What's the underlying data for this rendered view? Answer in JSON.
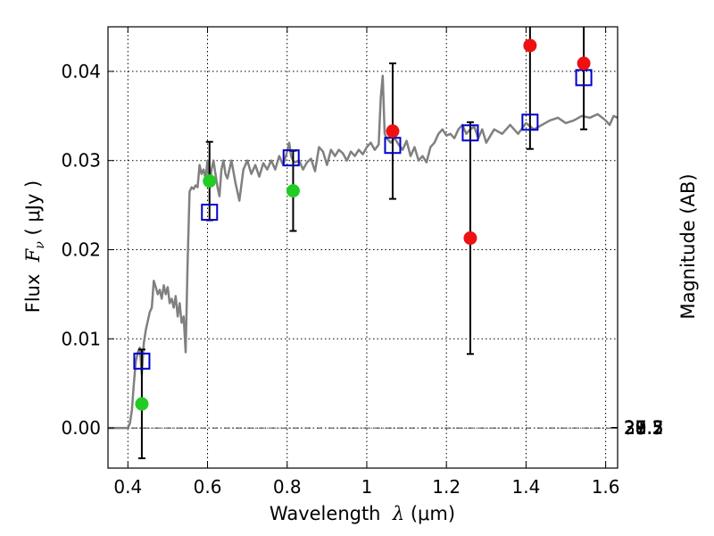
{
  "chart_data": {
    "type": "scatter",
    "xlabel": {
      "prefix": "Wavelength  ",
      "symbol": "λ",
      "units": " (μm)"
    },
    "ylabel": {
      "prefix": "Flux  ",
      "symbol": "F",
      "subscript": "ν",
      "units": " ( μJy )"
    },
    "y2label": "Magnitude (AB)",
    "xlim": [
      0.35,
      1.63
    ],
    "ylim": [
      -0.0045,
      0.045
    ],
    "grid": true,
    "x_ticks": [
      {
        "value": 0.4,
        "label": "0.4"
      },
      {
        "value": 0.6,
        "label": "0.6"
      },
      {
        "value": 0.8,
        "label": "0.8"
      },
      {
        "value": 1.0,
        "label": "1"
      },
      {
        "value": 1.2,
        "label": "1.2"
      },
      {
        "value": 1.4,
        "label": "1.4"
      },
      {
        "value": 1.6,
        "label": "1.6"
      }
    ],
    "y_ticks": [
      {
        "value": 0.0,
        "label": "0.00"
      },
      {
        "value": 0.01,
        "label": "0.01"
      },
      {
        "value": 0.02,
        "label": "0.02"
      },
      {
        "value": 0.03,
        "label": "0.03"
      },
      {
        "value": 0.04,
        "label": "0.04"
      }
    ],
    "y2_ticks": [
      {
        "value": 27.3,
        "label": "27.3"
      },
      {
        "value": 27.5,
        "label": "27.5"
      },
      {
        "value": 27.7,
        "label": "27.7"
      },
      {
        "value": 28.0,
        "label": "28"
      },
      {
        "value": 28.2,
        "label": "28.2"
      },
      {
        "value": 28.5,
        "label": "28.5"
      },
      {
        "value": 29.0,
        "label": "29"
      },
      {
        "value": 29.5,
        "label": "29.5"
      },
      {
        "value": 30.0,
        "label": "30"
      },
      {
        "value": 31.0,
        "label": "31"
      }
    ],
    "model_spectrum": {
      "color": "#808080",
      "x": [
        0.35,
        0.4,
        0.405,
        0.41,
        0.415,
        0.42,
        0.425,
        0.43,
        0.435,
        0.44,
        0.445,
        0.45,
        0.455,
        0.46,
        0.465,
        0.47,
        0.475,
        0.48,
        0.485,
        0.49,
        0.495,
        0.5,
        0.505,
        0.51,
        0.515,
        0.52,
        0.525,
        0.53,
        0.535,
        0.54,
        0.545,
        0.55,
        0.555,
        0.56,
        0.565,
        0.57,
        0.575,
        0.58,
        0.585,
        0.59,
        0.595,
        0.6,
        0.605,
        0.61,
        0.615,
        0.62,
        0.625,
        0.63,
        0.635,
        0.64,
        0.645,
        0.65,
        0.66,
        0.67,
        0.68,
        0.69,
        0.7,
        0.71,
        0.72,
        0.73,
        0.74,
        0.75,
        0.76,
        0.77,
        0.78,
        0.79,
        0.8,
        0.805,
        0.81,
        0.815,
        0.82,
        0.83,
        0.84,
        0.85,
        0.86,
        0.87,
        0.88,
        0.89,
        0.9,
        0.91,
        0.92,
        0.93,
        0.94,
        0.95,
        0.96,
        0.97,
        0.98,
        0.99,
        1.0,
        1.01,
        1.02,
        1.03,
        1.035,
        1.04,
        1.045,
        1.05,
        1.06,
        1.07,
        1.08,
        1.09,
        1.1,
        1.11,
        1.12,
        1.13,
        1.14,
        1.15,
        1.16,
        1.17,
        1.18,
        1.19,
        1.2,
        1.21,
        1.22,
        1.23,
        1.24,
        1.25,
        1.26,
        1.27,
        1.28,
        1.29,
        1.3,
        1.32,
        1.34,
        1.36,
        1.38,
        1.4,
        1.42,
        1.44,
        1.46,
        1.48,
        1.5,
        1.52,
        1.54,
        1.56,
        1.58,
        1.6,
        1.61,
        1.62,
        1.63
      ],
      "y": [
        0.0,
        0.0,
        0.0005,
        0.002,
        0.005,
        0.0075,
        0.0085,
        0.009,
        0.006,
        0.0095,
        0.011,
        0.012,
        0.013,
        0.0135,
        0.0165,
        0.0158,
        0.015,
        0.0155,
        0.0145,
        0.016,
        0.015,
        0.0158,
        0.014,
        0.0145,
        0.0135,
        0.0148,
        0.0125,
        0.014,
        0.0118,
        0.0125,
        0.0085,
        0.0185,
        0.0265,
        0.027,
        0.0268,
        0.0272,
        0.027,
        0.0295,
        0.0285,
        0.029,
        0.028,
        0.03,
        0.027,
        0.029,
        0.03,
        0.0285,
        0.027,
        0.026,
        0.029,
        0.03,
        0.0285,
        0.028,
        0.03,
        0.0275,
        0.0255,
        0.029,
        0.03,
        0.0285,
        0.0295,
        0.0282,
        0.0297,
        0.029,
        0.03,
        0.029,
        0.0305,
        0.0295,
        0.031,
        0.032,
        0.0305,
        0.03,
        0.0298,
        0.03,
        0.029,
        0.0298,
        0.0302,
        0.0288,
        0.0315,
        0.031,
        0.0295,
        0.0312,
        0.0305,
        0.0312,
        0.0308,
        0.03,
        0.031,
        0.0305,
        0.0312,
        0.0307,
        0.0315,
        0.032,
        0.0312,
        0.0318,
        0.037,
        0.0395,
        0.033,
        0.0325,
        0.032,
        0.0325,
        0.0318,
        0.0312,
        0.0322,
        0.0305,
        0.0315,
        0.03,
        0.0305,
        0.0298,
        0.0315,
        0.032,
        0.033,
        0.0335,
        0.0328,
        0.033,
        0.0325,
        0.0335,
        0.034,
        0.033,
        0.0335,
        0.0338,
        0.0325,
        0.0335,
        0.032,
        0.0335,
        0.033,
        0.034,
        0.033,
        0.0342,
        0.0335,
        0.034,
        0.0345,
        0.0348,
        0.0342,
        0.0345,
        0.035,
        0.0348,
        0.0352,
        0.0345,
        0.034,
        0.035,
        0.0348
      ]
    },
    "template_fluxes": {
      "marker": "open-square",
      "color": "#0000cc",
      "x": [
        0.435,
        0.605,
        0.81,
        1.065,
        1.26,
        1.41,
        1.545
      ],
      "y": [
        0.0075,
        0.0242,
        0.0303,
        0.0317,
        0.0331,
        0.0343,
        0.0393
      ]
    },
    "observed_fluxes": {
      "marker": "filled-circle",
      "x": [
        0.435,
        0.605,
        0.815,
        1.065,
        1.26,
        1.41,
        1.545
      ],
      "y": [
        0.0027,
        0.0277,
        0.0266,
        0.0333,
        0.0213,
        0.0429,
        0.0409
      ],
      "yerr": [
        0.0061,
        0.0044,
        0.0045,
        0.0076,
        0.013,
        0.0116,
        0.0074
      ],
      "colors": [
        "#22cc22",
        "#22cc22",
        "#22cc22",
        "#ee1111",
        "#ee1111",
        "#ee1111",
        "#ee1111"
      ]
    }
  }
}
